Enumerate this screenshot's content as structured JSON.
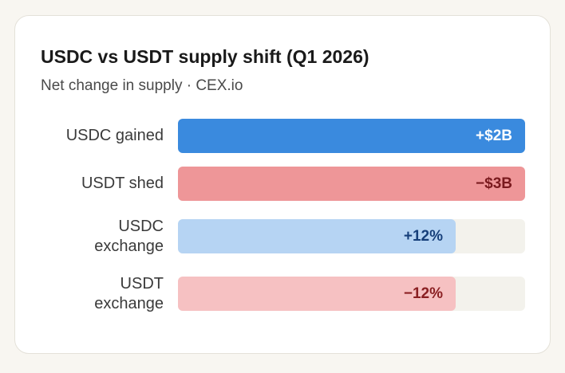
{
  "chart_data": {
    "type": "bar",
    "orientation": "horizontal",
    "title": "USDC vs USDT supply shift (Q1 2026)",
    "subtitle": "Net change in supply · CEX.io",
    "max_magnitude": 3,
    "bars": [
      {
        "label_lines": [
          "USDC gained"
        ],
        "magnitude": 3,
        "value_label": "+$2B",
        "fill_color": "#3a8ade",
        "text_color": "#ffffff"
      },
      {
        "label_lines": [
          "USDT shed"
        ],
        "magnitude": 3,
        "value_label": "−$3B",
        "fill_color": "#ee9698",
        "text_color": "#7a1a1e"
      },
      {
        "label_lines": [
          "USDC",
          "exchange"
        ],
        "magnitude": 2.4,
        "value_label": "+12%",
        "fill_color": "#b6d4f3",
        "text_color": "#163f7a"
      },
      {
        "label_lines": [
          "USDT",
          "exchange"
        ],
        "magnitude": 2.4,
        "value_label": "−12%",
        "fill_color": "#f6c1c2",
        "text_color": "#8a1f22"
      }
    ]
  }
}
